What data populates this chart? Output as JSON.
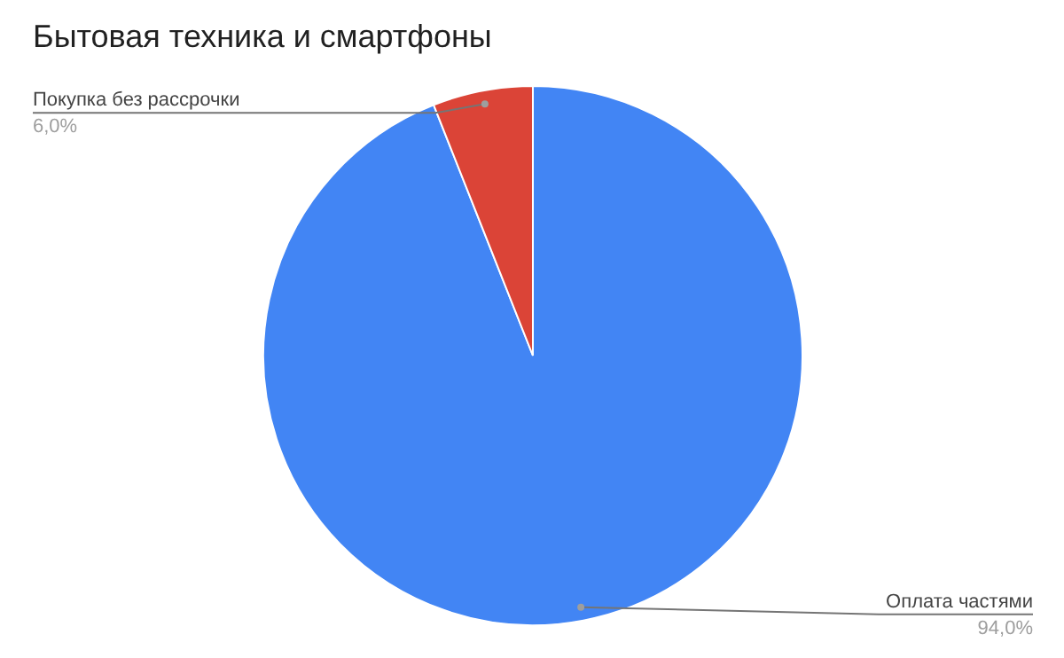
{
  "chart_data": {
    "type": "pie",
    "title": "Бытовая техника и смартфоны",
    "categories": [
      "Оплата частями",
      "Покупка без рассрочки"
    ],
    "values": [
      94.0,
      6.0
    ],
    "colors": [
      "#4285f4",
      "#db4437"
    ],
    "value_labels": [
      "94,0%",
      "6,0%"
    ]
  }
}
